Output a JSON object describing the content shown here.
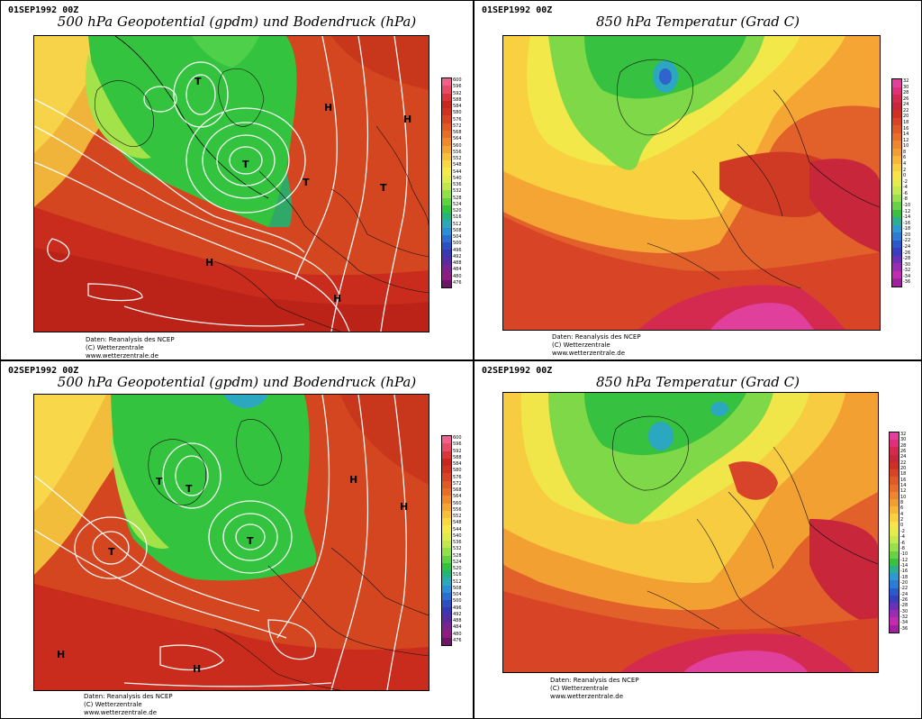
{
  "colors": {
    "geo_scale": [
      "#f0608c",
      "#e84a6a",
      "#d9353a",
      "#c8261e",
      "#cf3320",
      "#d84422",
      "#e05a24",
      "#e86e28",
      "#ee8a2c",
      "#f3a532",
      "#f7c03a",
      "#f9d942",
      "#f4ea4a",
      "#e0ec4c",
      "#bfe84c",
      "#93df48",
      "#5fd242",
      "#33c43e",
      "#22b57a",
      "#2da8b8",
      "#2a8fd4",
      "#2a6ed0",
      "#2d4fc4",
      "#3a37b0",
      "#5a2aa0",
      "#7a2290",
      "#8e1d82",
      "#6e1468"
    ],
    "temp_scale": [
      "#e0409c",
      "#e0307c",
      "#d42a50",
      "#c8263a",
      "#d03024",
      "#d84426",
      "#e05a28",
      "#e86e2a",
      "#ee862e",
      "#f39e32",
      "#f7b838",
      "#f9d040",
      "#f6e448",
      "#e4ec4c",
      "#c4ea4e",
      "#9ae04a",
      "#66d244",
      "#38c240",
      "#2ab090",
      "#2c9ad0",
      "#2a7cd4",
      "#2a5acc",
      "#3a3fc0",
      "#6a30b8",
      "#9a2cb4",
      "#c22ab0",
      "#a020a0"
    ]
  },
  "panels": [
    {
      "stamp": "01SEP1992 00Z",
      "title": "500 hPa Geopotential (gpdm) und Bodendruck (hPa)",
      "scale_ticks": [
        "600",
        "596",
        "592",
        "588",
        "584",
        "580",
        "576",
        "572",
        "568",
        "564",
        "560",
        "556",
        "552",
        "548",
        "544",
        "540",
        "536",
        "532",
        "528",
        "524",
        "520",
        "516",
        "512",
        "508",
        "504",
        "500",
        "496",
        "492",
        "488",
        "484",
        "480",
        "476"
      ],
      "credits": [
        "Daten: Reanalysis des NCEP",
        "(C) Wetterzentrale",
        "www.wetterzentrale.de"
      ],
      "features": [
        {
          "sym": "H",
          "label": "high-pressure-marker"
        },
        {
          "sym": "H",
          "label": "high-pressure-marker"
        },
        {
          "sym": "H",
          "label": "high-pressure-marker"
        },
        {
          "sym": "H",
          "label": "high-pressure-marker"
        },
        {
          "sym": "T",
          "label": "low-pressure-marker"
        },
        {
          "sym": "T",
          "label": "low-pressure-marker"
        },
        {
          "sym": "T",
          "label": "low-pressure-marker"
        },
        {
          "sym": "T",
          "label": "low-pressure-marker"
        }
      ]
    },
    {
      "stamp": "01SEP1992 00Z",
      "title": "850 hPa Temperatur (Grad C)",
      "scale_ticks": [
        "32",
        "30",
        "28",
        "26",
        "24",
        "22",
        "20",
        "18",
        "16",
        "14",
        "12",
        "10",
        "8",
        "6",
        "4",
        "2",
        "0",
        "-2",
        "-4",
        "-6",
        "-8",
        "-10",
        "-12",
        "-14",
        "-16",
        "-18",
        "-20",
        "-22",
        "-24",
        "-26",
        "-28",
        "-30",
        "-32",
        "-34",
        "-36"
      ],
      "credits": [
        "Daten: Reanalysis des NCEP",
        "(C) Wetterzentrale",
        "www.wetterzentrale.de"
      ],
      "features": []
    },
    {
      "stamp": "02SEP1992 00Z",
      "title": "500 hPa Geopotential (gpdm) und Bodendruck (hPa)",
      "scale_ticks": [
        "600",
        "596",
        "592",
        "588",
        "584",
        "580",
        "576",
        "572",
        "568",
        "564",
        "560",
        "556",
        "552",
        "548",
        "544",
        "540",
        "536",
        "532",
        "528",
        "524",
        "520",
        "516",
        "512",
        "508",
        "504",
        "500",
        "496",
        "492",
        "488",
        "484",
        "480",
        "476"
      ],
      "credits": [
        "Daten: Reanalysis des NCEP",
        "(C) Wetterzentrale",
        "www.wetterzentrale.de"
      ],
      "features": [
        {
          "sym": "H",
          "label": "high-pressure-marker"
        },
        {
          "sym": "H",
          "label": "high-pressure-marker"
        },
        {
          "sym": "H",
          "label": "high-pressure-marker"
        },
        {
          "sym": "H",
          "label": "high-pressure-marker"
        },
        {
          "sym": "T",
          "label": "low-pressure-marker"
        },
        {
          "sym": "T",
          "label": "low-pressure-marker"
        },
        {
          "sym": "T",
          "label": "low-pressure-marker"
        },
        {
          "sym": "T",
          "label": "low-pressure-marker"
        }
      ]
    },
    {
      "stamp": "02SEP1992 00Z",
      "title": "850 hPa Temperatur (Grad C)",
      "scale_ticks": [
        "32",
        "30",
        "28",
        "26",
        "24",
        "22",
        "20",
        "18",
        "16",
        "14",
        "12",
        "10",
        "8",
        "6",
        "4",
        "2",
        "0",
        "-2",
        "-4",
        "-6",
        "-8",
        "-10",
        "-12",
        "-14",
        "-16",
        "-18",
        "-20",
        "-22",
        "-24",
        "-26",
        "-28",
        "-30",
        "-32",
        "-34",
        "-36"
      ],
      "credits": [
        "Daten: Reanalysis des NCEP",
        "(C) Wetterzentrale",
        "www.wetterzentrale.de"
      ],
      "features": []
    }
  ]
}
